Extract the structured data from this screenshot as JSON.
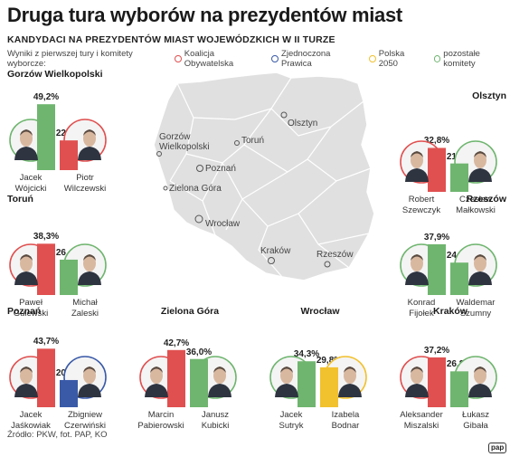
{
  "title": "Druga tura wyborów na prezydentów miast",
  "subtitle": "KANDYDACI NA PREZYDENTÓW MIAST WOJEWÓDZKICH W II TURZE",
  "legend": {
    "intro": "Wyniki z pierwszej tury i komitety wyborcze:",
    "items": [
      {
        "label": "Koalicja Obywatelska",
        "color": "#e05050"
      },
      {
        "label": "Zjednoczona Prawica",
        "color": "#3a5aa8"
      },
      {
        "label": "Polska 2050",
        "color": "#f2c12e"
      },
      {
        "label": "pozostałe komitety",
        "color": "#6fb56f"
      }
    ]
  },
  "source": "Źródło: PKW, fot. PAP, KO",
  "logo": "pap",
  "map_labels": [
    {
      "first": "Gorzów",
      "second": "Wielkopolski"
    },
    {
      "first": "Olsztyn",
      "second": ""
    },
    {
      "first": "Toruń",
      "second": ""
    },
    {
      "first": "Poznań",
      "second": ""
    },
    {
      "first": "Zielona Góra",
      "second": ""
    },
    {
      "first": "Wrocław",
      "second": ""
    },
    {
      "first": "Kraków",
      "second": ""
    },
    {
      "first": "Rzeszów",
      "second": ""
    }
  ],
  "chart_data": {
    "type": "bar",
    "ylim": [
      0,
      50
    ],
    "cities": [
      {
        "name": "Gorzów Wielkopolski",
        "candidates": [
          {
            "first": "Jacek",
            "last": "Wójcicki",
            "value": 49.2,
            "label": "49,2%",
            "party": "pozostałe komitety",
            "color": "#6fb56f"
          },
          {
            "first": "Piotr",
            "last": "Wilczewski",
            "value": 22.2,
            "label": "22,2%",
            "party": "Koalicja Obywatelska",
            "color": "#e05050"
          }
        ]
      },
      {
        "name": "Olsztyn",
        "candidates": [
          {
            "first": "Robert",
            "last": "Szewczyk",
            "value": 32.8,
            "label": "32,8%",
            "party": "Koalicja Obywatelska",
            "color": "#e05050"
          },
          {
            "first": "Czesław",
            "last": "Małkowski",
            "value": 21.2,
            "label": "21,2%",
            "party": "pozostałe komitety",
            "color": "#6fb56f"
          }
        ]
      },
      {
        "name": "Toruń",
        "candidates": [
          {
            "first": "Paweł",
            "last": "Gulewski",
            "value": 38.3,
            "label": "38,3%",
            "party": "Koalicja Obywatelska",
            "color": "#e05050"
          },
          {
            "first": "Michał",
            "last": "Zaleski",
            "value": 26.4,
            "label": "26,4%",
            "party": "pozostałe komitety",
            "color": "#6fb56f"
          }
        ]
      },
      {
        "name": "Rzeszów",
        "candidates": [
          {
            "first": "Konrad",
            "last": "Fijołek",
            "value": 37.9,
            "label": "37,9%",
            "party": "pozostałe komitety",
            "color": "#6fb56f"
          },
          {
            "first": "Waldemar",
            "last": "Szumny",
            "value": 24.2,
            "label": "24,2%",
            "party": "pozostałe komitety",
            "color": "#6fb56f"
          }
        ]
      },
      {
        "name": "Poznań",
        "candidates": [
          {
            "first": "Jacek",
            "last": "Jaśkowiak",
            "value": 43.7,
            "label": "43,7%",
            "party": "Koalicja Obywatelska",
            "color": "#e05050"
          },
          {
            "first": "Zbigniew",
            "last": "Czerwiński",
            "value": 20.3,
            "label": "20,3%",
            "party": "Zjednoczona Prawica",
            "color": "#3a5aa8"
          }
        ]
      },
      {
        "name": "Zielona Góra",
        "candidates": [
          {
            "first": "Marcin",
            "last": "Pabierowski",
            "value": 42.7,
            "label": "42,7%",
            "party": "Koalicja Obywatelska",
            "color": "#e05050"
          },
          {
            "first": "Janusz",
            "last": "Kubicki",
            "value": 36.0,
            "label": "36,0%",
            "party": "pozostałe komitety",
            "color": "#6fb56f"
          }
        ]
      },
      {
        "name": "Wrocław",
        "candidates": [
          {
            "first": "Jacek",
            "last": "Sutryk",
            "value": 34.3,
            "label": "34,3%",
            "party": "pozostałe komitety",
            "color": "#6fb56f"
          },
          {
            "first": "Izabela",
            "last": "Bodnar",
            "value": 29.8,
            "label": "29,8%",
            "party": "Polska 2050",
            "color": "#f2c12e"
          }
        ]
      },
      {
        "name": "Kraków",
        "candidates": [
          {
            "first": "Aleksander",
            "last": "Miszalski",
            "value": 37.2,
            "label": "37,2%",
            "party": "Koalicja Obywatelska",
            "color": "#e05050"
          },
          {
            "first": "Łukasz",
            "last": "Gibała",
            "value": 26.8,
            "label": "26,8%",
            "party": "pozostałe komitety",
            "color": "#6fb56f"
          }
        ]
      }
    ]
  }
}
